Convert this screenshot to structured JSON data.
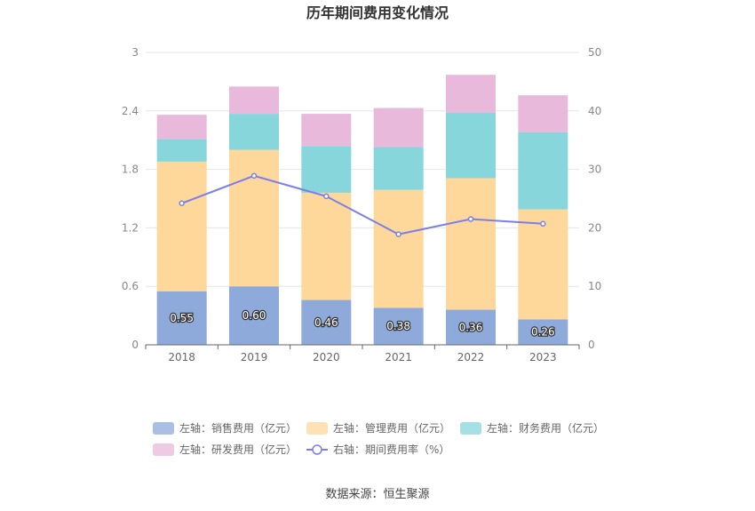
{
  "chart_data": {
    "type": "bar",
    "title": "历年期间费用变化情况",
    "categories": [
      "2018",
      "2019",
      "2020",
      "2021",
      "2022",
      "2023"
    ],
    "left_axis": {
      "ylim": [
        0,
        3
      ],
      "ticks": [
        "0",
        "0.6",
        "1.2",
        "1.8",
        "2.4",
        "3"
      ]
    },
    "right_axis": {
      "ylim": [
        0,
        50
      ],
      "ticks": [
        "0",
        "10",
        "20",
        "30",
        "40",
        "50"
      ]
    },
    "stacked": true,
    "series": [
      {
        "name": "左轴：销售费用（亿元）",
        "type": "bar",
        "axis": "left",
        "color": "#8eaadb",
        "values": [
          0.55,
          0.6,
          0.46,
          0.38,
          0.36,
          0.26
        ],
        "labels": [
          "0.55",
          "0.60",
          "0.46",
          "0.38",
          "0.36",
          "0.26"
        ]
      },
      {
        "name": "左轴：管理费用（亿元）",
        "type": "bar",
        "axis": "left",
        "color": "#fed89b",
        "values": [
          1.33,
          1.4,
          1.1,
          1.21,
          1.35,
          1.13
        ]
      },
      {
        "name": "左轴：财务费用（亿元）",
        "type": "bar",
        "axis": "left",
        "color": "#86d6db",
        "values": [
          0.23,
          0.37,
          0.48,
          0.44,
          0.67,
          0.79
        ]
      },
      {
        "name": "左轴：研发费用（亿元）",
        "type": "bar",
        "axis": "left",
        "color": "#e8b9da",
        "values": [
          0.25,
          0.28,
          0.33,
          0.4,
          0.39,
          0.38
        ]
      },
      {
        "name": "右轴：期间费用率（%）",
        "type": "line",
        "axis": "right",
        "color": "#7b7fea",
        "values": [
          24.2,
          28.9,
          25.4,
          18.9,
          21.5,
          20.7
        ]
      }
    ],
    "legend_position": "bottom",
    "grid": true
  },
  "footer": {
    "source": "数据来源：恒生聚源"
  }
}
